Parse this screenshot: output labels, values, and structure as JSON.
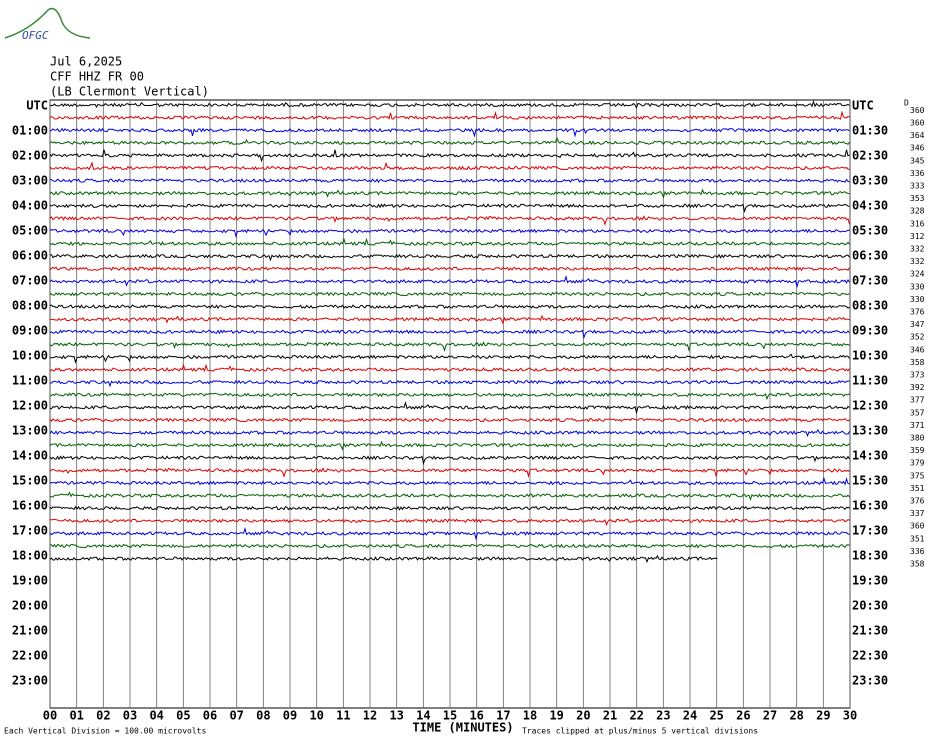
{
  "logo": "OFGC",
  "header": {
    "date": "Jul 6,2025",
    "station": "CFF HHZ FR 00",
    "location": "(LB Clermont Vertical)"
  },
  "left_labels": [
    "UTC",
    "01:00",
    "02:00",
    "03:00",
    "04:00",
    "05:00",
    "06:00",
    "07:00",
    "08:00",
    "09:00",
    "10:00",
    "11:00",
    "12:00",
    "13:00",
    "14:00",
    "15:00",
    "16:00",
    "17:00",
    "18:00",
    "19:00",
    "20:00",
    "21:00",
    "22:00",
    "23:00"
  ],
  "right_labels": [
    "UTC",
    "01:30",
    "02:30",
    "03:30",
    "04:30",
    "05:30",
    "06:30",
    "07:30",
    "08:30",
    "09:30",
    "10:30",
    "11:30",
    "12:30",
    "13:30",
    "14:30",
    "15:30",
    "16:30",
    "17:30",
    "18:30",
    "19:30",
    "20:30",
    "21:30",
    "22:30",
    "23:30"
  ],
  "right_corner": "D",
  "trace_levels": [
    "360",
    "360",
    "364",
    "346",
    "345",
    "336",
    "333",
    "353",
    "328",
    "316",
    "312",
    "332",
    "332",
    "324",
    "330",
    "330",
    "376",
    "347",
    "352",
    "346",
    "358",
    "373",
    "392",
    "377",
    "357",
    "371",
    "380",
    "359",
    "379",
    "375",
    "351",
    "376",
    "337",
    "360",
    "351",
    "336",
    "358"
  ],
  "x_labels": [
    "00",
    "01",
    "02",
    "03",
    "04",
    "05",
    "06",
    "07",
    "08",
    "09",
    "10",
    "11",
    "12",
    "13",
    "14",
    "15",
    "16",
    "17",
    "18",
    "19",
    "20",
    "21",
    "22",
    "23",
    "24",
    "25",
    "26",
    "27",
    "28",
    "29",
    "30"
  ],
  "footer": {
    "division": "Each Vertical Division =  100.00 microvolts",
    "axis_title": "TIME (MINUTES)",
    "clip": "Traces clipped at plus/minus 5 vertical divisions"
  }
}
